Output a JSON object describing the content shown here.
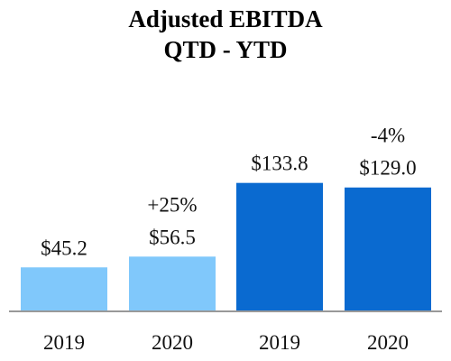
{
  "chart_data": {
    "type": "bar",
    "title": "Adjusted EBITDA",
    "subtitle": "QTD - YTD",
    "categories": [
      "2019",
      "2020",
      "2019",
      "2020"
    ],
    "values": [
      45.2,
      56.5,
      133.8,
      129.0
    ],
    "value_labels": [
      "$45.2",
      "$56.5",
      "$133.8",
      "$129.0"
    ],
    "change_labels": [
      "",
      "+25%",
      "",
      "-4%"
    ],
    "groups": [
      {
        "label": "QTD",
        "indices": [
          0,
          1
        ],
        "color": "#80c8fb"
      },
      {
        "label": "YTD",
        "indices": [
          2,
          3
        ],
        "color": "#0a6ad0"
      }
    ],
    "bar_colors": [
      "#80c8fb",
      "#80c8fb",
      "#0a6ad0",
      "#0a6ad0"
    ],
    "axis_color": "#999999",
    "ylim": [
      0,
      160
    ],
    "grid": false,
    "xlabel": "",
    "ylabel": ""
  }
}
